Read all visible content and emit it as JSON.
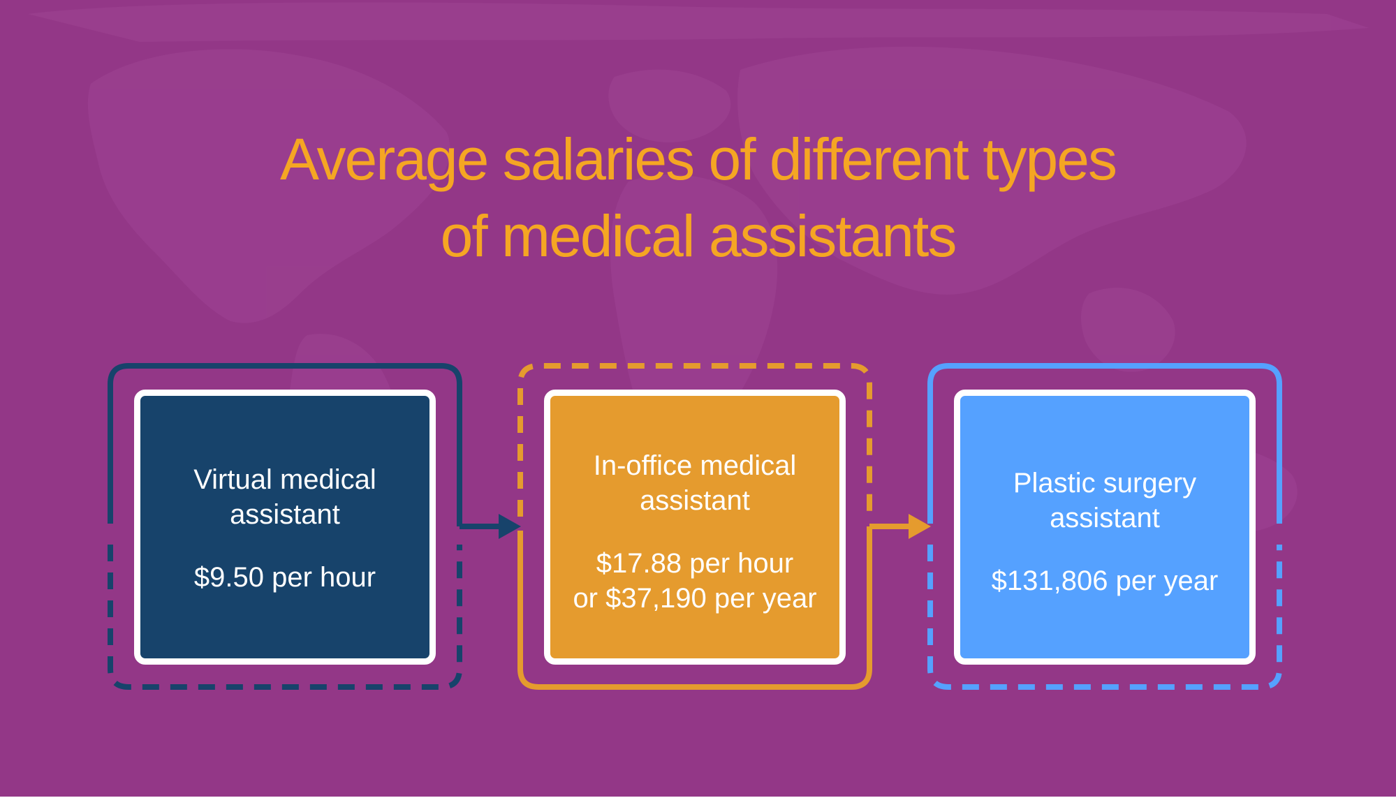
{
  "title": {
    "line1": "Average salaries of different types",
    "line2": "of medical assistants"
  },
  "steps": [
    {
      "role_line1": "Virtual medical",
      "role_line2": "assistant",
      "pay_line1": "$9.50 per hour",
      "pay_line2": ""
    },
    {
      "role_line1": "In-office medical",
      "role_line2": "assistant",
      "pay_line1": "$17.88 per hour",
      "pay_line2": "or $37,190 per year"
    },
    {
      "role_line1": "Plastic surgery",
      "role_line2": "assistant",
      "pay_line1": "$131,806 per year",
      "pay_line2": ""
    }
  ],
  "colors": {
    "background": "#933787",
    "title": "#F5A623",
    "card_1": "#17436B",
    "card_2": "#E59B2E",
    "card_3": "#55A1FF",
    "card_border": "#FFFFFF"
  },
  "background_decoration": "world-map-icon"
}
